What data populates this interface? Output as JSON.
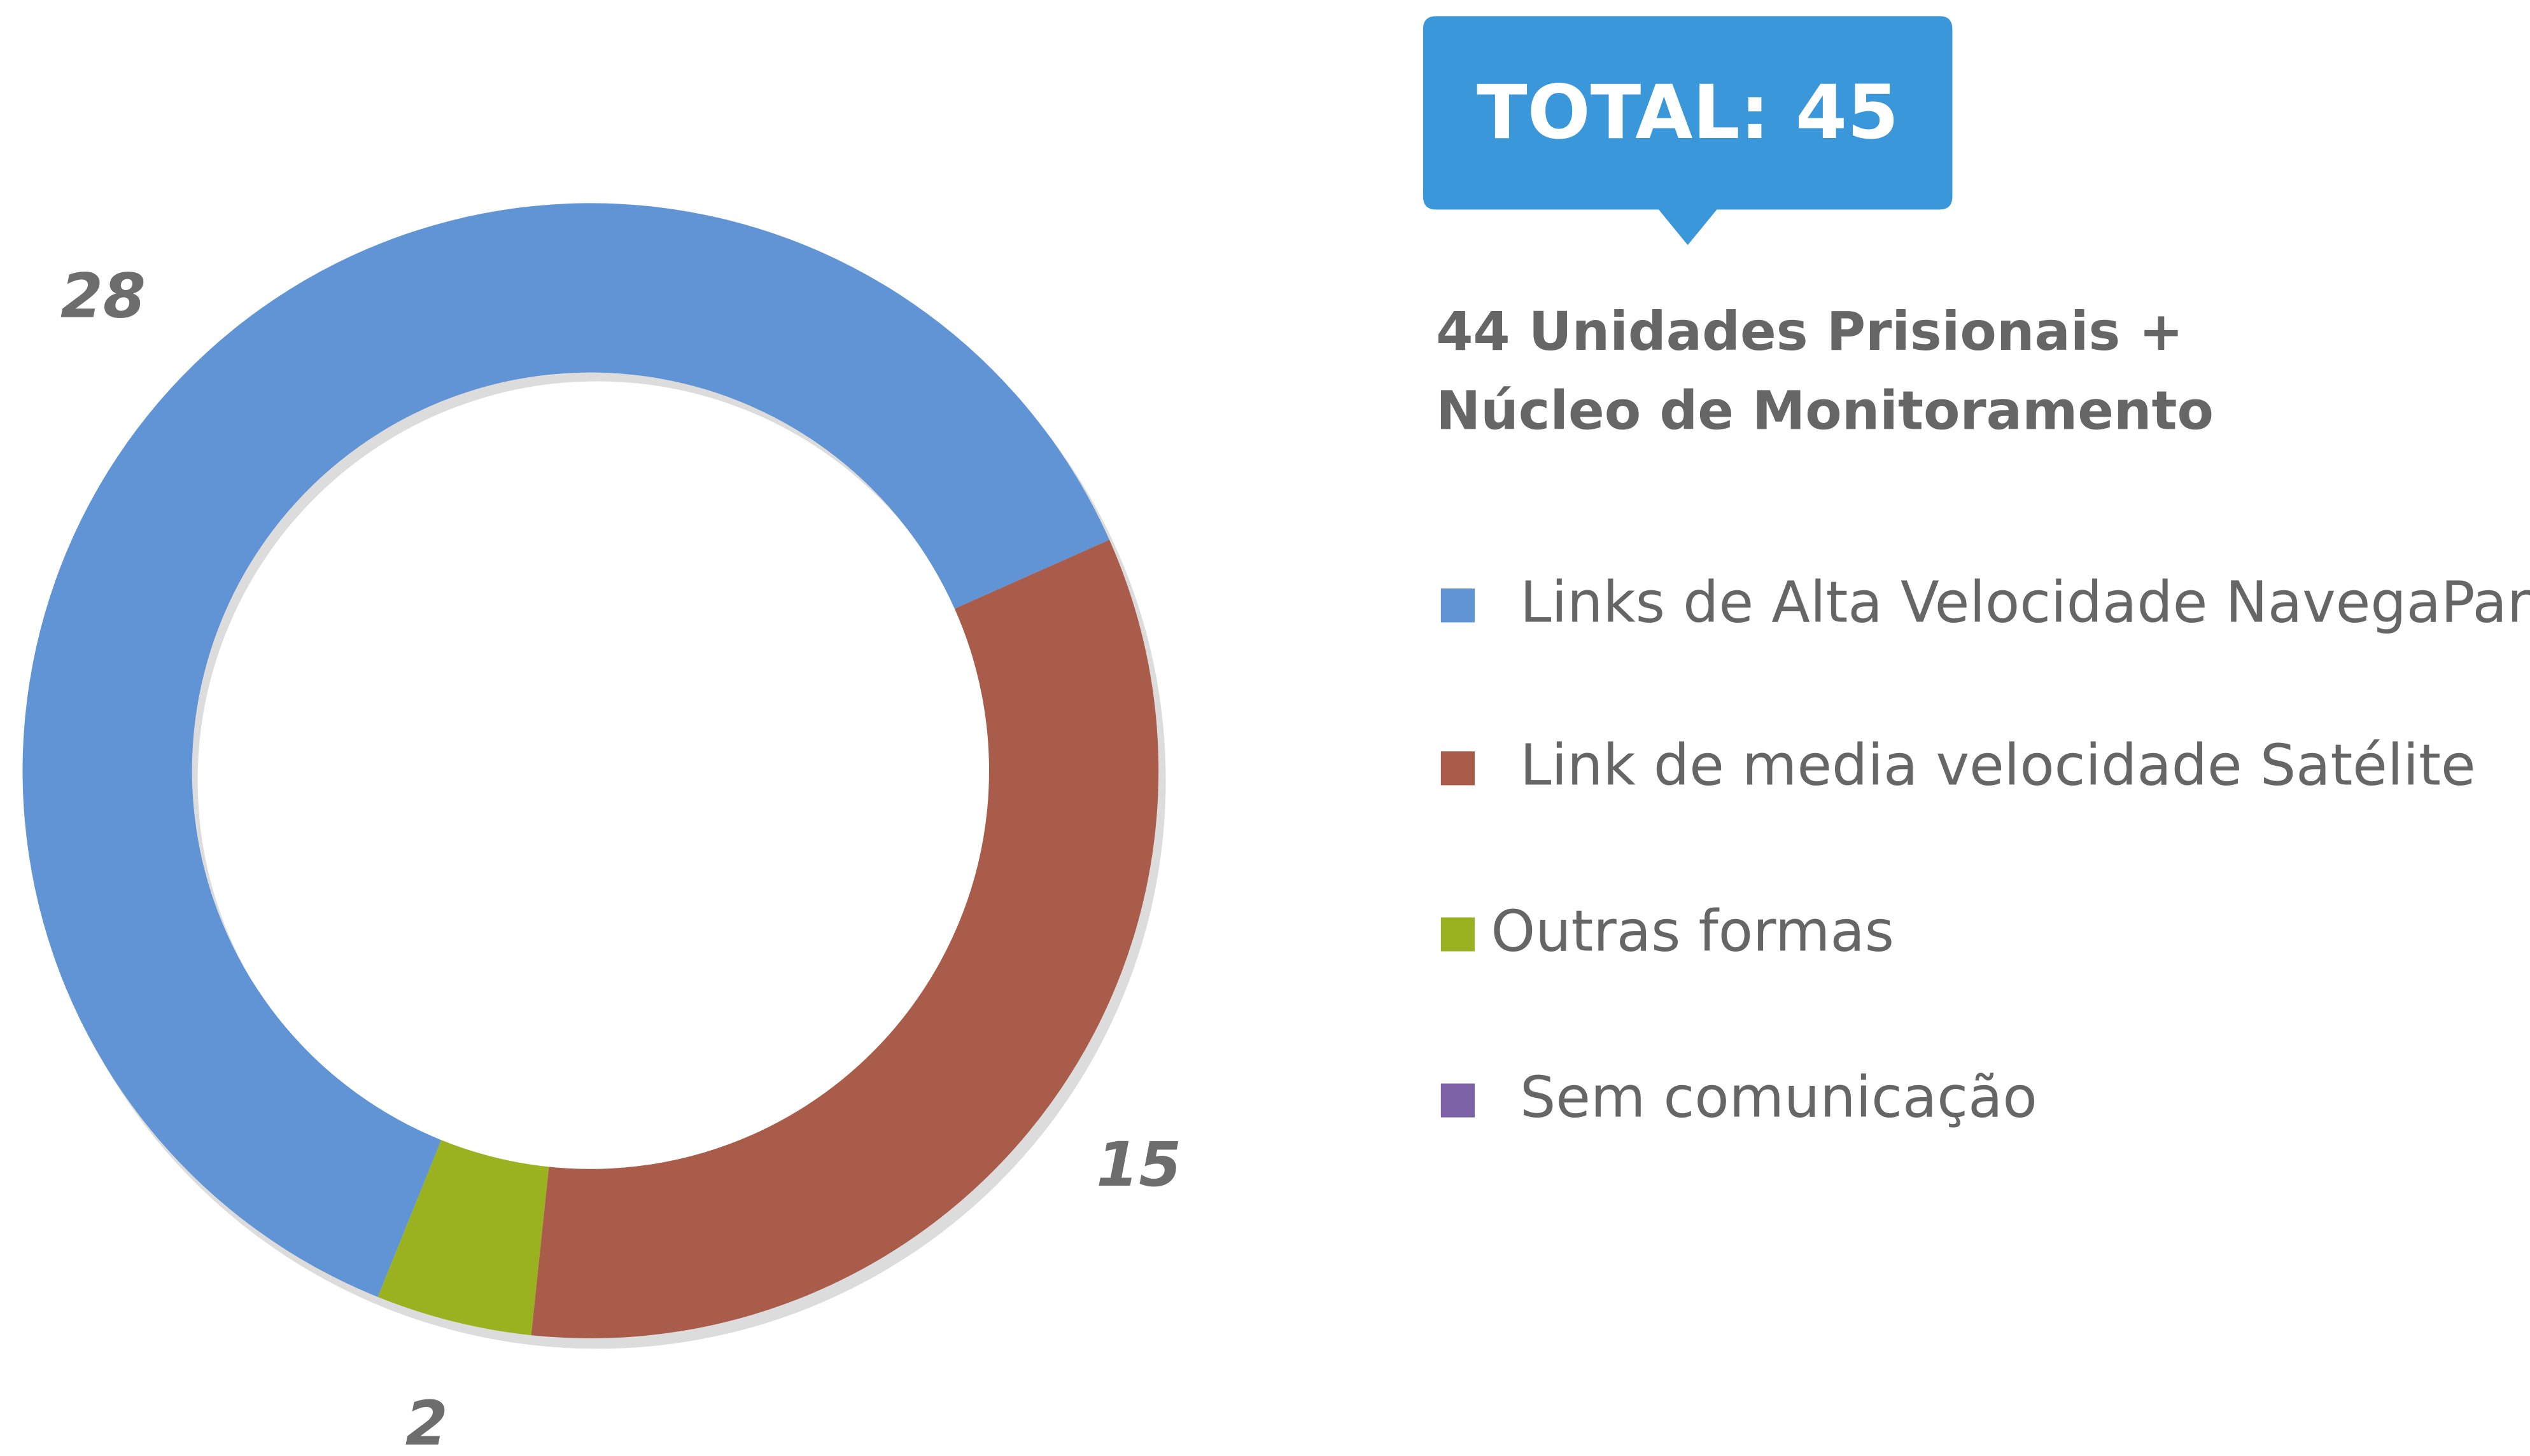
{
  "chart_data": {
    "type": "donut",
    "title": "TOTAL: 45",
    "subtitle": [
      "44 Unidades Prisionais +",
      "Núcleo de Monitoramento"
    ],
    "categories": [
      "Links de Alta Velocidade NavegaPará",
      "Link de media velocidade Satélite",
      "Outras formas",
      "Sem comunicação"
    ],
    "values": [
      28,
      15,
      2,
      0
    ],
    "colors": [
      "#6194d5",
      "#a95c4a",
      "#9bb220",
      "#7e62a8"
    ]
  }
}
